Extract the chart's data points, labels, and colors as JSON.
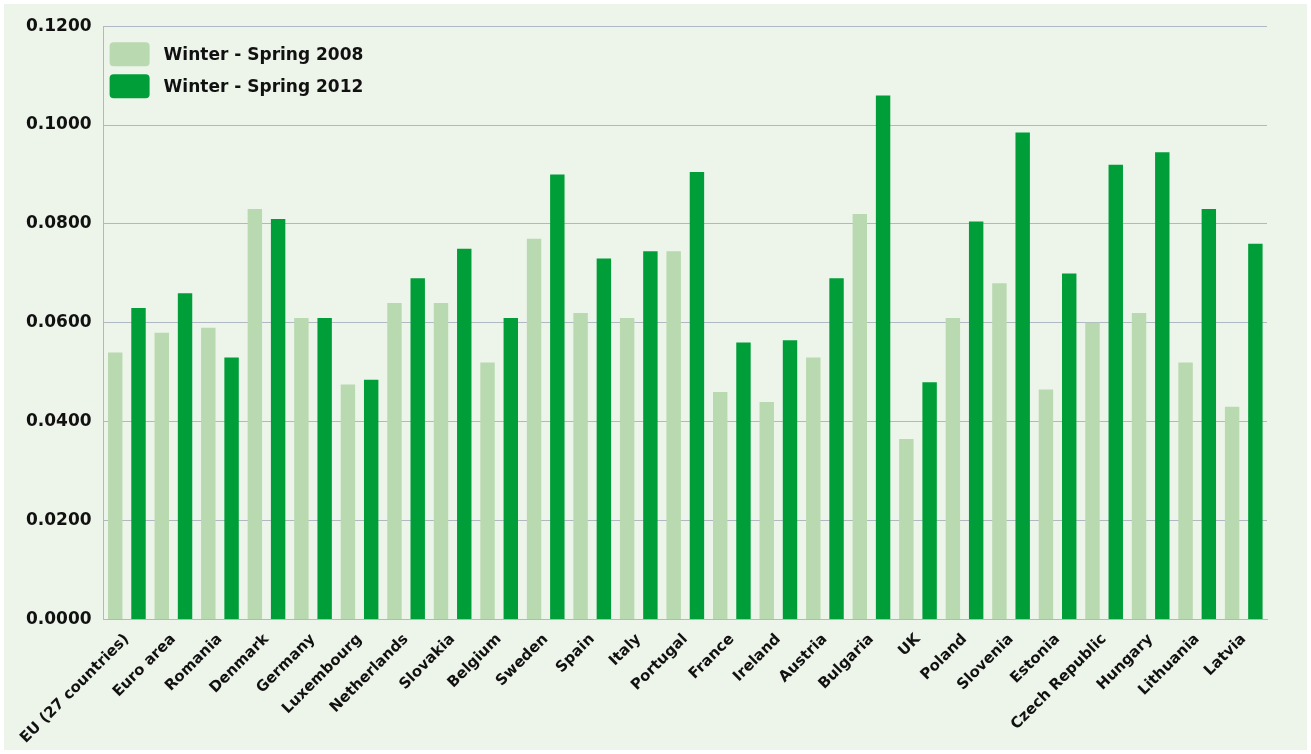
{
  "chart_data": {
    "type": "bar",
    "categories": [
      "EU (27 countries)",
      "Euro area",
      "Romania",
      "Denmark",
      "Germany",
      "Luxembourg",
      "Netherlands",
      "Slovakia",
      "Belgium",
      "Sweden",
      "Spain",
      "Italy",
      "Portugal",
      "France",
      "Ireland",
      "Austria",
      "Bulgaria",
      "UK",
      "Poland",
      "Slovenia",
      "Estonia",
      "Czech Republic",
      "Hungary",
      "Lithuania",
      "Latvia"
    ],
    "series": [
      {
        "name": "Winter - Spring 2008",
        "color": "#b9d9b0",
        "values": [
          0.054,
          0.058,
          0.059,
          0.083,
          0.061,
          0.0475,
          0.064,
          0.064,
          0.052,
          0.077,
          0.062,
          0.061,
          0.0745,
          0.046,
          0.044,
          0.053,
          0.082,
          0.0365,
          0.061,
          0.068,
          0.0465,
          0.06,
          0.062,
          0.052,
          0.043
        ]
      },
      {
        "name": "Winter - Spring 2012",
        "color": "#009e39",
        "values": [
          0.063,
          0.066,
          0.053,
          0.081,
          0.061,
          0.0485,
          0.069,
          0.075,
          0.061,
          0.09,
          0.073,
          0.0745,
          0.0905,
          0.056,
          0.0565,
          0.069,
          0.106,
          0.048,
          0.0805,
          0.0985,
          0.07,
          0.092,
          0.0945,
          0.083,
          0.076
        ]
      }
    ],
    "ylim": [
      0,
      0.12
    ],
    "yticks": [
      {
        "value": 0,
        "label": "0.0000"
      },
      {
        "value": 0.02,
        "label": "0.0200"
      },
      {
        "value": 0.04,
        "label": "0.0400"
      },
      {
        "value": 0.06,
        "label": "0.0600"
      },
      {
        "value": 0.08,
        "label": "0.0800"
      },
      {
        "value": 0.1,
        "label": "0.1000"
      },
      {
        "value": 0.12,
        "label": "0.1200"
      }
    ],
    "grid": "y",
    "legend": "top left"
  }
}
